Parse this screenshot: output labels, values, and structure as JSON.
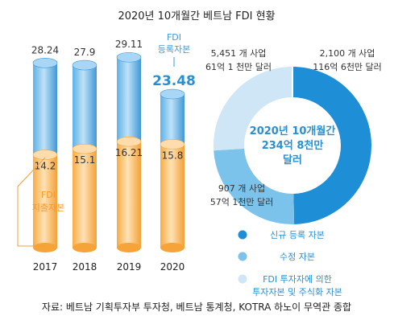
{
  "chart_data": [
    {
      "type": "bar",
      "title": "2020년 10개월간 베트남 FDI 현황",
      "categories": [
        "2017",
        "2018",
        "2019",
        "2020"
      ],
      "series": [
        {
          "name": "FDI 등록자본",
          "values": [
            28.24,
            27.9,
            29.11,
            23.48
          ]
        },
        {
          "name": "FDI 지출자본",
          "values": [
            14.2,
            15.1,
            16.21,
            15.8
          ]
        }
      ],
      "highlight": {
        "label": "FDI 등록자본",
        "value_text": "23.48"
      },
      "disbursed_label": "FDI 지출자본",
      "ylim": [
        0,
        30
      ]
    },
    {
      "type": "pie",
      "center_label": [
        "2020년 10개월간",
        "234억 8천만",
        "달러"
      ],
      "slices": [
        {
          "name": "신규 등록 자본",
          "value": 116.6,
          "line1": "2,100 개 사업",
          "line2": "116억 6천만 달러",
          "color": "#1e8fd6"
        },
        {
          "name": "수정 자본",
          "value": 57.1,
          "line1": "907 개 사업",
          "line2": "57억 1천만 달러",
          "color": "#7cc3ec"
        },
        {
          "name": "FDI 투자자에 의한 투자자본 및 주식화 자본",
          "legend_lines": [
            "FDI 투자자에 의한",
            "투자자본 및 주식화 자본"
          ],
          "value": 61.1,
          "line1": "5,451 개 사업",
          "line2": "61억 1 천만 달러",
          "color": "#cfe6f6"
        }
      ]
    }
  ],
  "colors": {
    "reg_dark": "#3d9ad8",
    "reg_light": "#a9d6f5",
    "disb_dark": "#f6a33a",
    "disb_light": "#ffdcab",
    "accent_blue": "#2a8fd0",
    "disb_text": "#f29a2a"
  },
  "footer": {
    "source": "자료: 베트남 기획투자부 투자청, 베트남 통계청, KOTRA 하노이 무역관 종합"
  }
}
